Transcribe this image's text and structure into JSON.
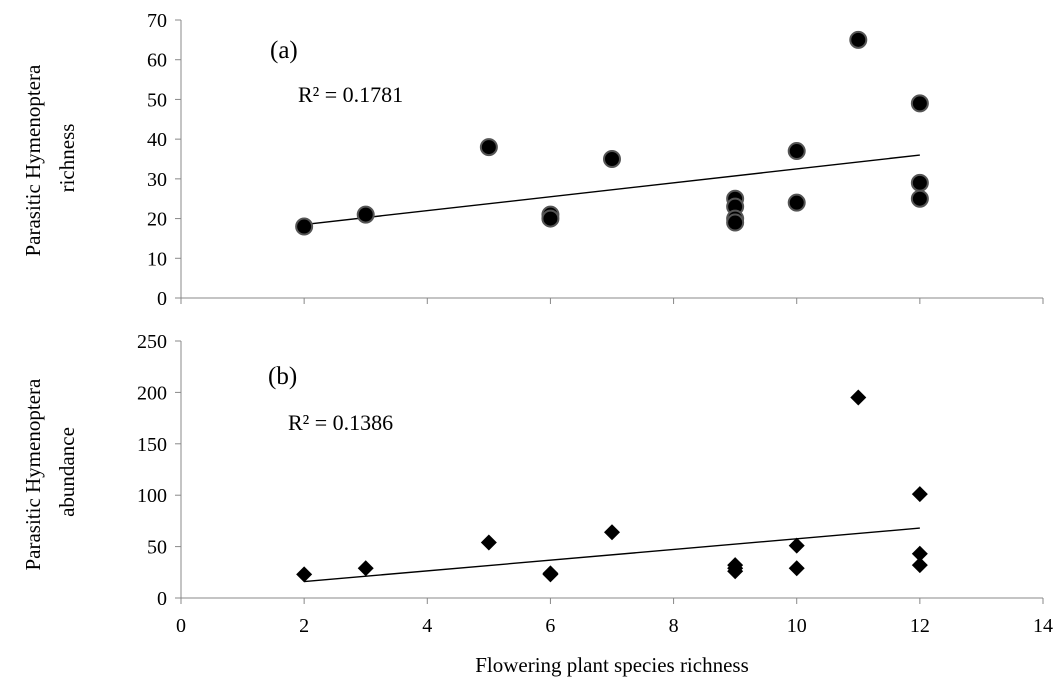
{
  "chart_data": [
    {
      "type": "scatter",
      "panel_label": "(a)",
      "r2_label": "R² = 0.1781",
      "ylabel": "Parasitic Hymenoptera richness",
      "ylabel_lines": [
        "Parasitic Hymenoptera",
        "richness"
      ],
      "xlabel": "",
      "xlim": [
        0,
        14
      ],
      "ylim": [
        0,
        70
      ],
      "yticks": [
        "0",
        "10",
        "20",
        "30",
        "40",
        "50",
        "60",
        "70"
      ],
      "xticks": [],
      "marker": "circle",
      "marker_color": "#000000",
      "points": [
        {
          "x": 2,
          "y": 18
        },
        {
          "x": 3,
          "y": 21
        },
        {
          "x": 5,
          "y": 38
        },
        {
          "x": 6,
          "y": 21
        },
        {
          "x": 6,
          "y": 20
        },
        {
          "x": 7,
          "y": 35
        },
        {
          "x": 9,
          "y": 25
        },
        {
          "x": 9,
          "y": 23
        },
        {
          "x": 9,
          "y": 20
        },
        {
          "x": 9,
          "y": 19
        },
        {
          "x": 10,
          "y": 37
        },
        {
          "x": 10,
          "y": 24
        },
        {
          "x": 11,
          "y": 65
        },
        {
          "x": 12,
          "y": 49
        },
        {
          "x": 12,
          "y": 29
        },
        {
          "x": 12,
          "y": 25
        }
      ],
      "trendline": {
        "x": [
          2,
          12
        ],
        "y": [
          18.5,
          36
        ]
      }
    },
    {
      "type": "scatter",
      "panel_label": "(b)",
      "r2_label": "R² = 0.1386",
      "ylabel": "Parasitic Hymenoptera abundance",
      "ylabel_lines": [
        "Parasitic Hymenoptera",
        "abundance"
      ],
      "xlabel": "Flowering plant species richness",
      "xlim": [
        0,
        14
      ],
      "ylim": [
        0,
        250
      ],
      "yticks": [
        "0",
        "50",
        "100",
        "150",
        "200",
        "250"
      ],
      "xticks": [
        "0",
        "2",
        "4",
        "6",
        "8",
        "10",
        "12",
        "14"
      ],
      "marker": "diamond",
      "marker_color": "#000000",
      "points": [
        {
          "x": 2,
          "y": 23
        },
        {
          "x": 3,
          "y": 29
        },
        {
          "x": 5,
          "y": 54
        },
        {
          "x": 6,
          "y": 24
        },
        {
          "x": 6,
          "y": 23
        },
        {
          "x": 7,
          "y": 64
        },
        {
          "x": 9,
          "y": 32
        },
        {
          "x": 9,
          "y": 29
        },
        {
          "x": 9,
          "y": 26
        },
        {
          "x": 10,
          "y": 51
        },
        {
          "x": 10,
          "y": 29
        },
        {
          "x": 11,
          "y": 195
        },
        {
          "x": 12,
          "y": 101
        },
        {
          "x": 12,
          "y": 43
        },
        {
          "x": 12,
          "y": 32
        }
      ],
      "trendline": {
        "x": [
          2,
          12
        ],
        "y": [
          16,
          68
        ]
      }
    }
  ]
}
